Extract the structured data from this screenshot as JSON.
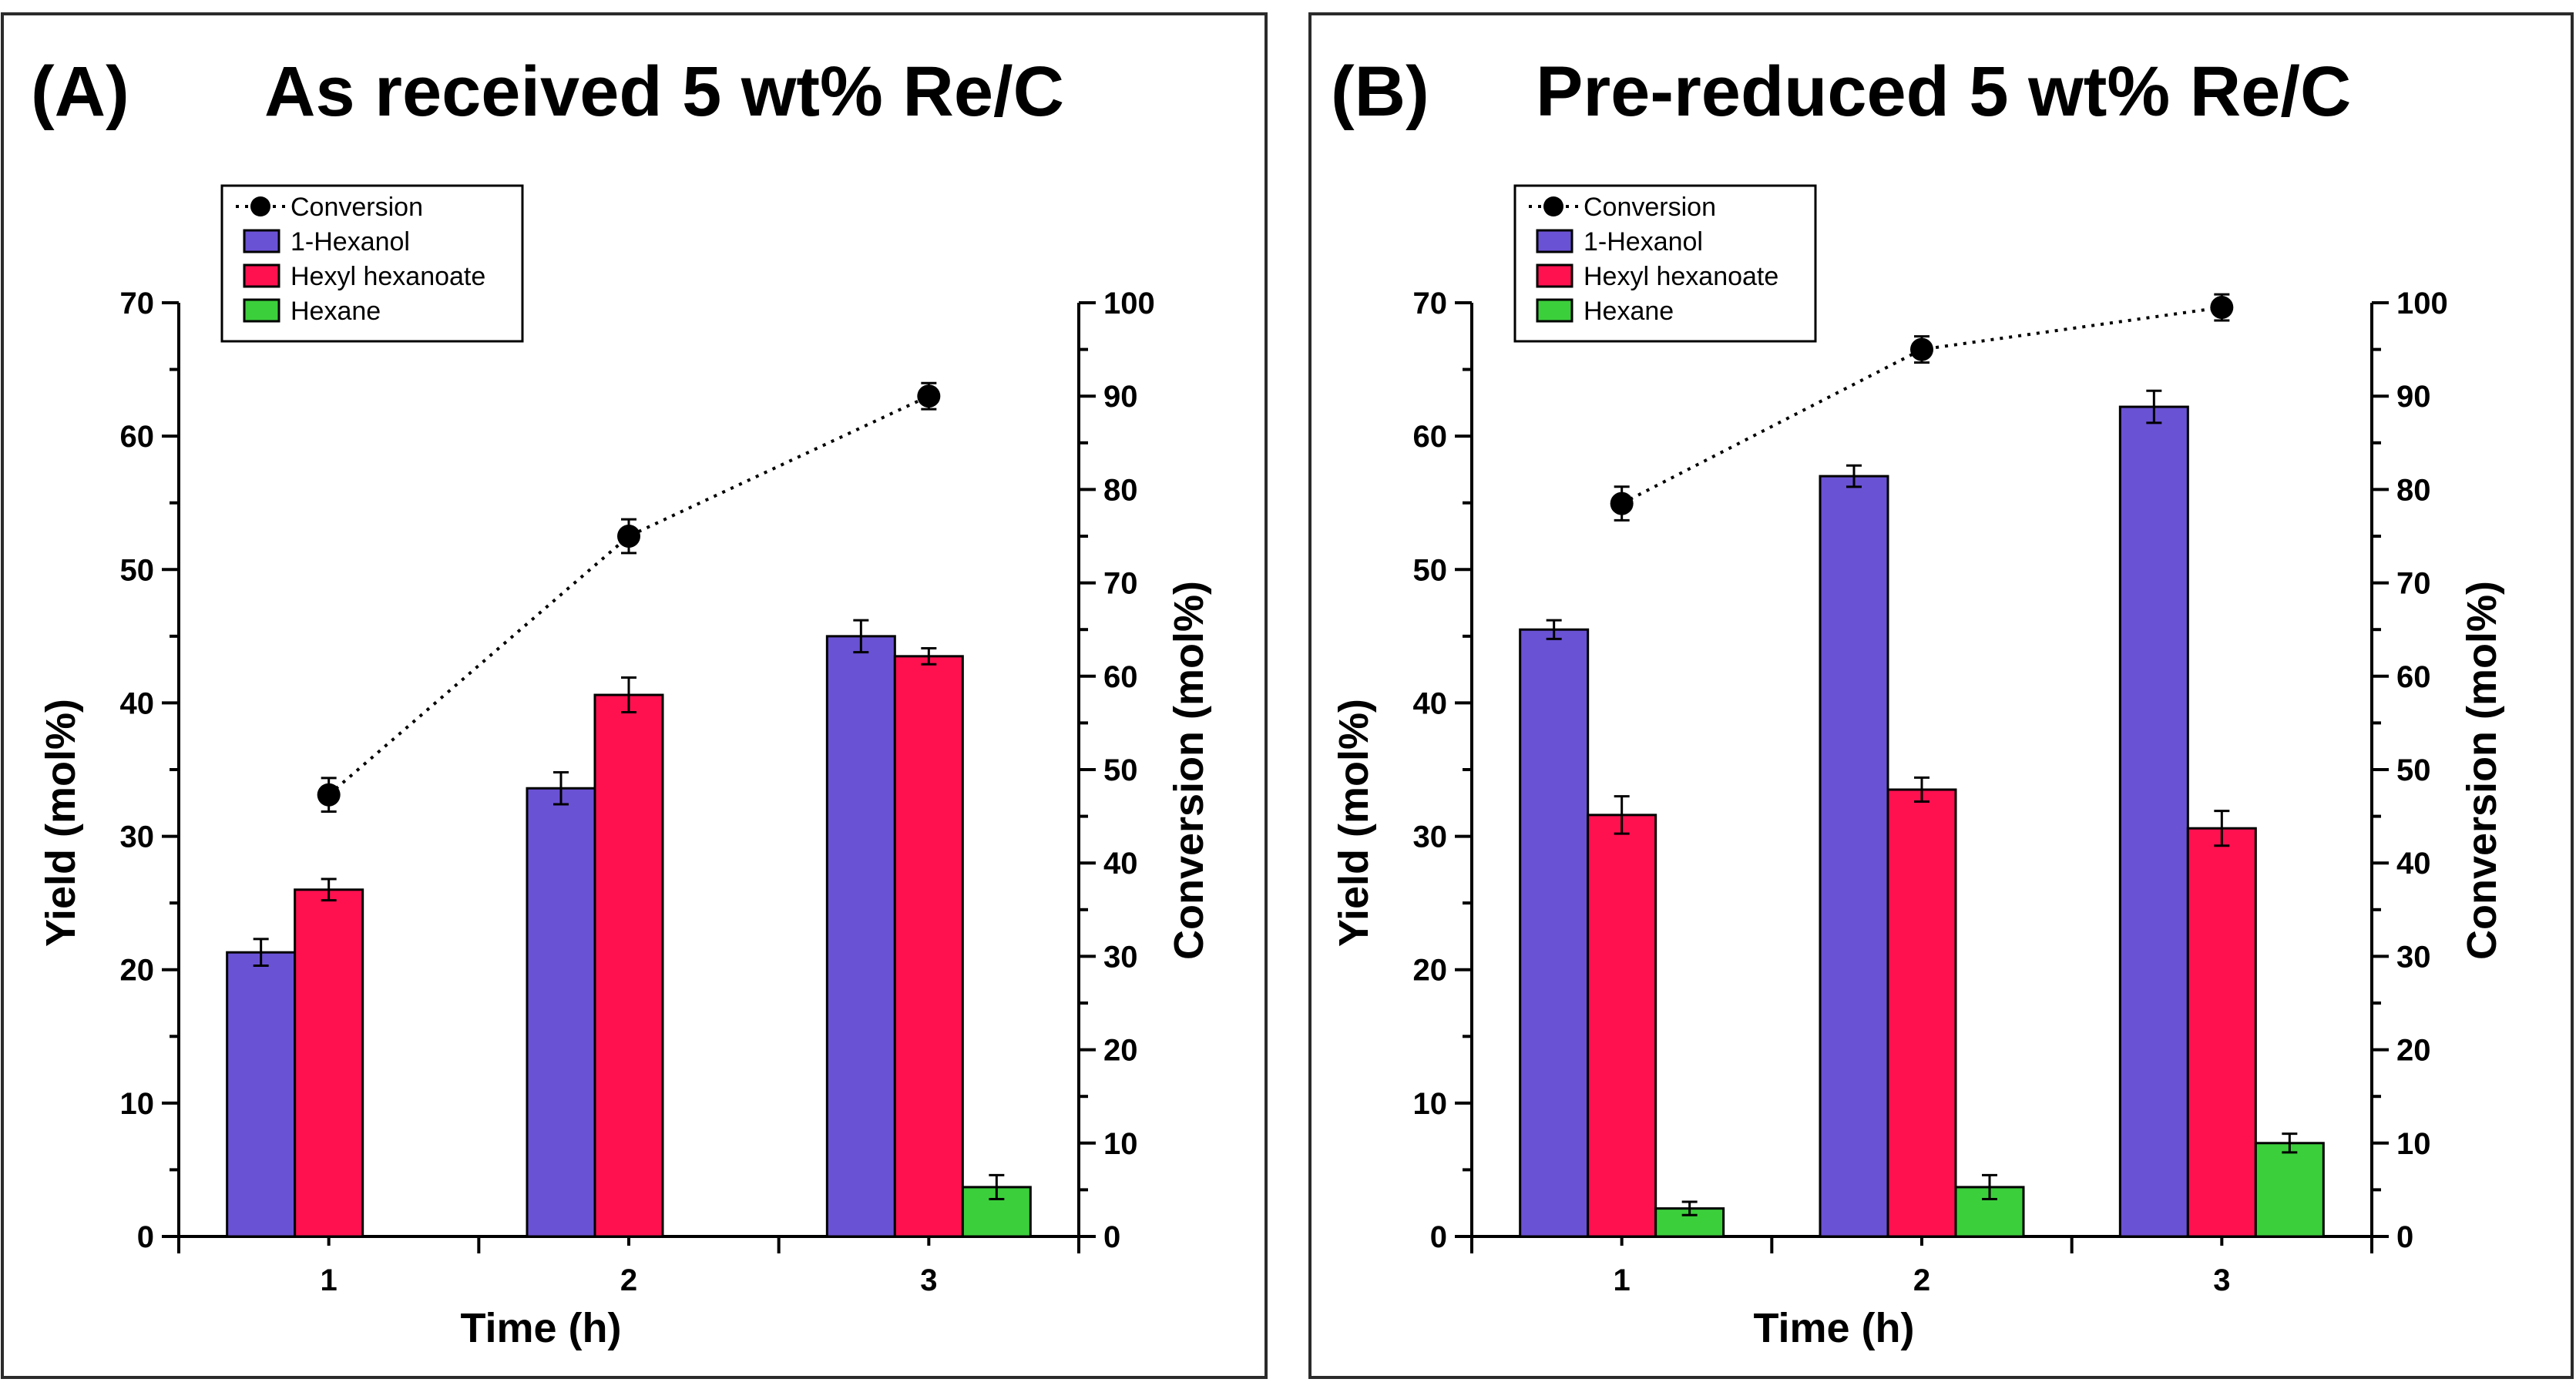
{
  "colors": {
    "hexanol": "#6a52d4",
    "hexyl_hexanoate": "#ff1150",
    "hexane": "#3ccf3c",
    "conversion": "#000000"
  },
  "chart_data": [
    {
      "type": "bar",
      "panel_label": "(A)",
      "title": "As received 5 wt% Re/C",
      "xlabel": "Time (h)",
      "ylabel": "Yield (mol%)",
      "y2label": "Conversion (mol%)",
      "categories": [
        "1",
        "2",
        "3"
      ],
      "ylim": [
        0,
        70
      ],
      "yticks": [
        "0",
        "10",
        "20",
        "30",
        "40",
        "50",
        "60",
        "70"
      ],
      "y2lim": [
        0,
        100
      ],
      "y2ticks": [
        "0",
        "10",
        "20",
        "30",
        "40",
        "50",
        "60",
        "70",
        "80",
        "90",
        "100"
      ],
      "legend": [
        "Conversion",
        "1-Hexanol",
        "Hexyl hexanoate",
        "Hexane"
      ],
      "series": [
        {
          "name": "1-Hexanol",
          "values": [
            21.3,
            33.6,
            45.0
          ],
          "errors": [
            1.0,
            1.2,
            1.2
          ]
        },
        {
          "name": "Hexyl hexanoate",
          "values": [
            26.0,
            40.6,
            43.5
          ],
          "errors": [
            0.8,
            1.3,
            0.6
          ]
        },
        {
          "name": "Hexane",
          "values": [
            null,
            null,
            3.7
          ],
          "errors": [
            null,
            null,
            0.9
          ]
        }
      ],
      "conversion": {
        "name": "Conversion",
        "values": [
          47.3,
          75.0,
          90.0
        ],
        "errors": [
          1.8,
          1.8,
          1.4
        ]
      }
    },
    {
      "type": "bar",
      "panel_label": "(B)",
      "title": "Pre-reduced 5 wt% Re/C",
      "xlabel": "Time (h)",
      "ylabel": "Yield (mol%)",
      "y2label": "Conversion (mol%)",
      "categories": [
        "1",
        "2",
        "3"
      ],
      "ylim": [
        0,
        70
      ],
      "yticks": [
        "0",
        "10",
        "20",
        "30",
        "40",
        "50",
        "60",
        "70"
      ],
      "y2lim": [
        0,
        100
      ],
      "y2ticks": [
        "0",
        "10",
        "20",
        "30",
        "40",
        "50",
        "60",
        "70",
        "80",
        "90",
        "100"
      ],
      "legend": [
        "Conversion",
        "1-Hexanol",
        "Hexyl hexanoate",
        "Hexane"
      ],
      "series": [
        {
          "name": "1-Hexanol",
          "values": [
            45.5,
            57.0,
            62.2
          ],
          "errors": [
            0.7,
            0.8,
            1.2
          ]
        },
        {
          "name": "Hexyl hexanoate",
          "values": [
            31.6,
            33.5,
            30.6
          ],
          "errors": [
            1.4,
            0.9,
            1.3
          ]
        },
        {
          "name": "Hexane",
          "values": [
            2.1,
            3.7,
            7.0
          ],
          "errors": [
            0.5,
            0.9,
            0.7
          ]
        }
      ],
      "conversion": {
        "name": "Conversion",
        "values": [
          78.5,
          95.0,
          99.5
        ],
        "errors": [
          1.8,
          1.4,
          1.4
        ]
      }
    }
  ]
}
